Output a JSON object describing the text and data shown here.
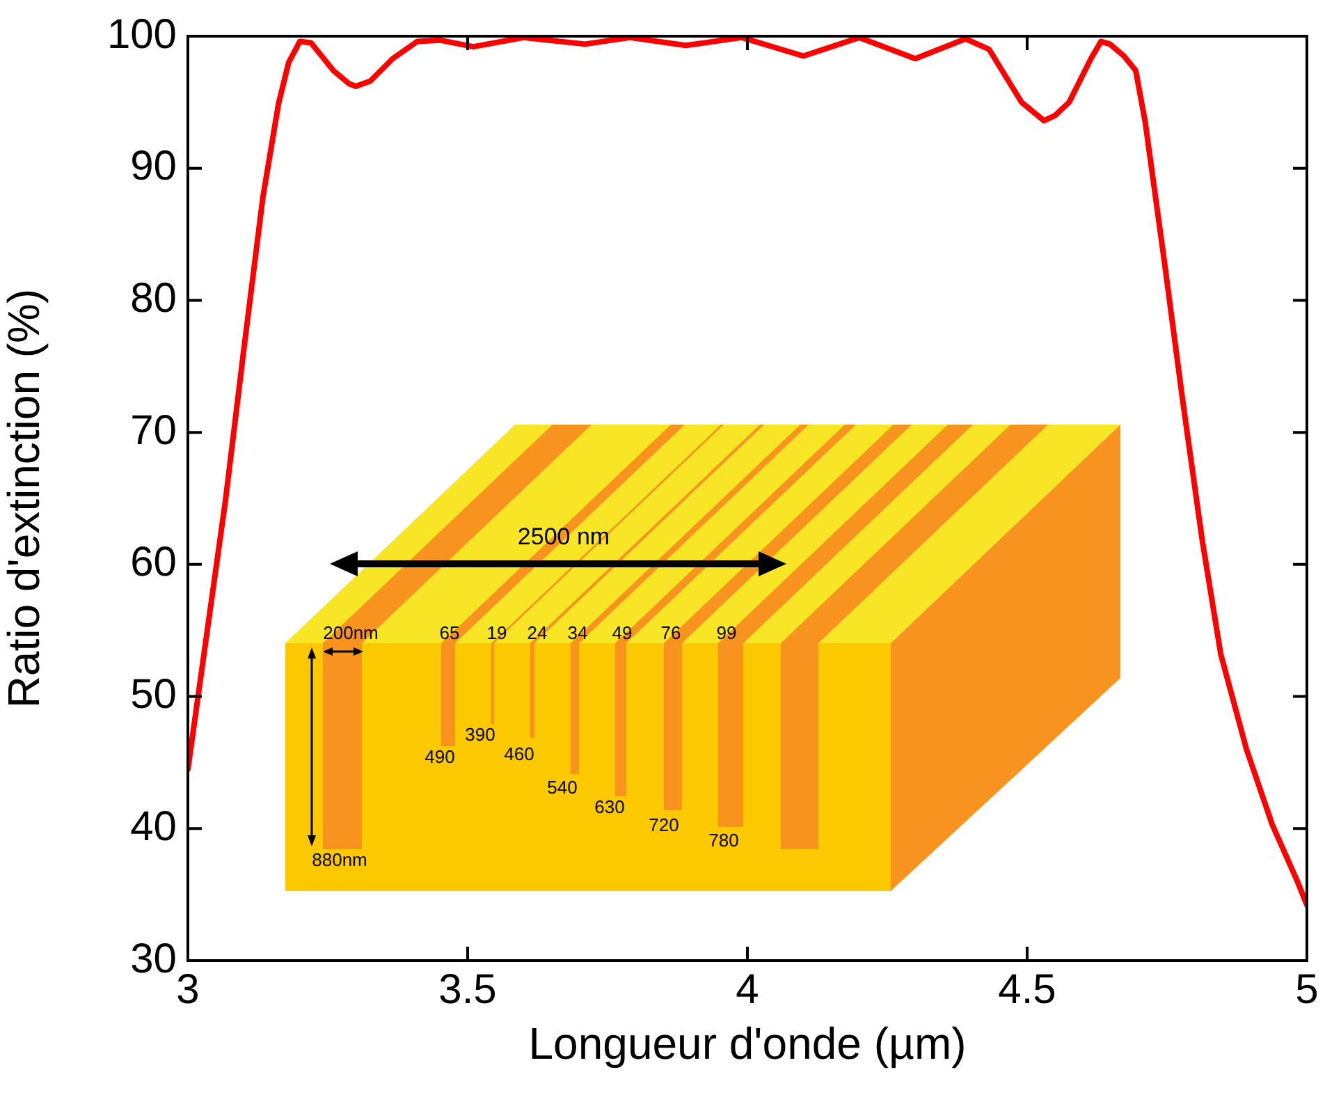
{
  "chart_data": {
    "type": "line",
    "xlabel": "Longueur d'onde (µm)",
    "ylabel": "Ratio d'extinction (%)",
    "xlim": [
      3,
      5
    ],
    "xticks": [
      3,
      3.5,
      4,
      4.5,
      5
    ],
    "ylim": [
      30,
      100
    ],
    "yticks": [
      30,
      40,
      50,
      60,
      70,
      80,
      90,
      100
    ],
    "annotations": [
      "2500 nm",
      "200nm",
      "880nm",
      "65",
      "19",
      "24",
      "34",
      "49",
      "76",
      "99",
      "490",
      "390",
      "460",
      "540",
      "630",
      "720",
      "780"
    ],
    "series": [
      {
        "color": "#ff0000",
        "x": [
          3.0,
          3.032,
          3.067,
          3.1,
          3.134,
          3.162,
          3.18,
          3.2,
          3.22,
          3.26,
          3.288,
          3.3,
          3.326,
          3.366,
          3.41,
          3.45,
          3.51,
          3.6,
          3.71,
          3.79,
          3.89,
          3.99,
          4.1,
          4.2,
          4.3,
          4.39,
          4.432,
          4.49,
          4.53,
          4.55,
          4.575,
          4.614,
          4.632,
          4.648,
          4.673,
          4.694,
          4.711,
          4.745,
          4.778,
          4.813,
          4.846,
          4.892,
          4.938,
          4.983,
          5.0
        ],
        "values": [
          44.5,
          54.2,
          64.8,
          76.3,
          87.8,
          94.9,
          98.0,
          99.6,
          99.5,
          97.4,
          96.4,
          96.2,
          96.6,
          98.3,
          99.6,
          99.7,
          99.2,
          99.9,
          99.4,
          99.9,
          99.3,
          99.9,
          98.5,
          99.9,
          98.3,
          99.8,
          99.0,
          95.0,
          93.6,
          94.0,
          95.0,
          98.3,
          99.6,
          99.4,
          98.5,
          97.4,
          93.5,
          83.0,
          72.4,
          61.8,
          53.2,
          46.0,
          40.3,
          36.0,
          34.2
        ]
      }
    ]
  }
}
